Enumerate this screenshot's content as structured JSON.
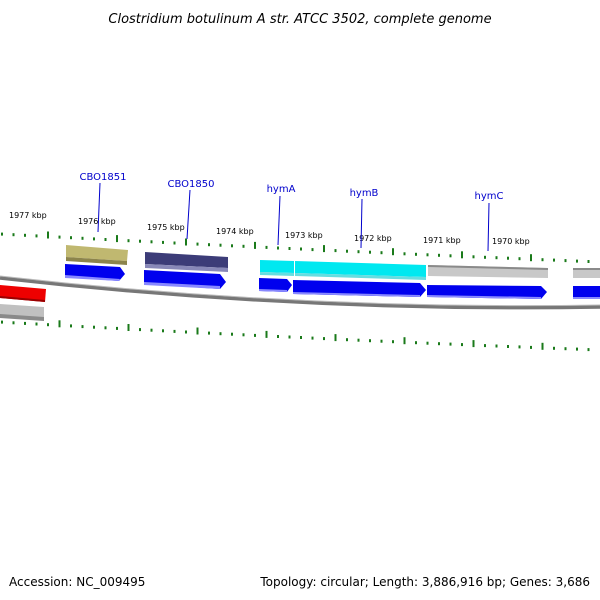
{
  "title": "Clostridium botulinum A str. ATCC 3502, complete genome",
  "footer": {
    "accession": "Accession: NC_009495",
    "topology": "Topology: circular; Length: 3,886,916 bp; Genes: 3,686"
  },
  "kbp_labels": [
    "1977 kbp",
    "1976 kbp",
    "1975 kbp",
    "1974 kbp",
    "1973 kbp",
    "1972 kbp",
    "1971 kbp",
    "1970 kbp"
  ],
  "gene_labels": [
    "CBO1851",
    "CBO1850",
    "hymA",
    "hymB",
    "hymC"
  ],
  "colors": {
    "tick": "#1a7a1a",
    "backbone": "#777777",
    "cds": "#0000ee",
    "gene_label": "#0000cc",
    "CBO1851": "#c0b870",
    "CBO1850": "#3c3c78",
    "hymA": "#00e8f0",
    "hymB": "#00e8f0",
    "hymC": "#b8b8b8",
    "red_feature": "#ee0000"
  }
}
